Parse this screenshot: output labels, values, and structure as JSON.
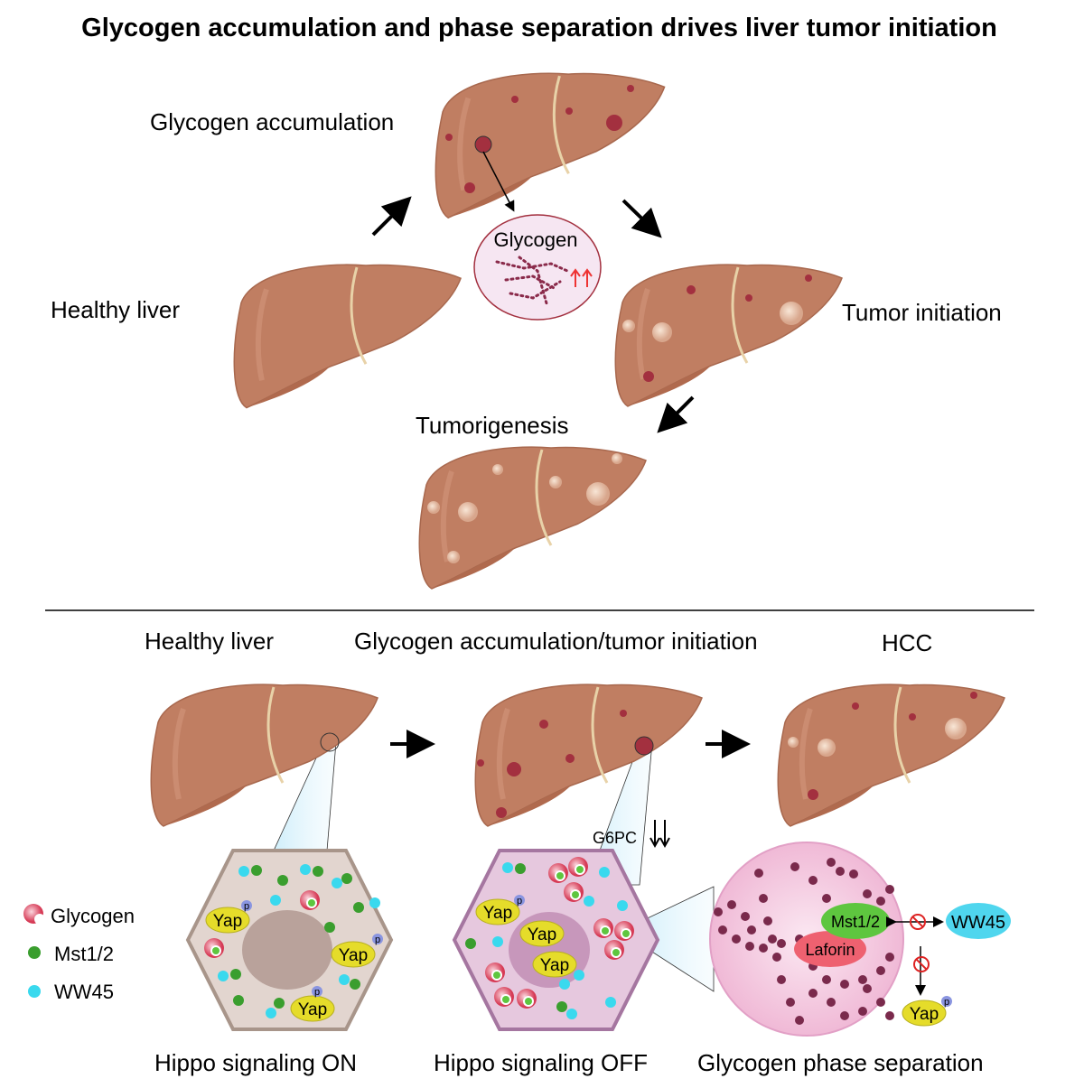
{
  "title": "Glycogen accumulation and phase separation drives liver tumor initiation",
  "top": {
    "glycogen_accumulation": "Glycogen accumulation",
    "healthy_liver": "Healthy liver",
    "tumor_initiation": "Tumor initiation",
    "tumorigenesis": "Tumorigenesis",
    "glycogen_inset": "Glycogen"
  },
  "bottom": {
    "stage1": "Healthy liver",
    "stage2": "Glycogen accumulation/tumor initiation",
    "stage3": "HCC",
    "g6pc": "G6PC",
    "caption1": "Hippo signaling ON",
    "caption2": "Hippo signaling OFF",
    "caption3": "Glycogen phase separation",
    "yap": "Yap",
    "phospho": "p",
    "mst": "Mst1/2",
    "laforin": "Laforin",
    "ww45": "WW45"
  },
  "legend": [
    {
      "label": "Glycogen",
      "color": "#d9405a"
    },
    {
      "label": "Mst1/2",
      "color": "#3a9e2e"
    },
    {
      "label": "WW45",
      "color": "#39d9ee"
    }
  ],
  "colors": {
    "liver": "#c07e62",
    "spot": "#a3303f",
    "yap": "#e5dc2a",
    "mst": "#5ec63f",
    "laforin": "#ee6170",
    "ww45": "#4fd6ee"
  }
}
